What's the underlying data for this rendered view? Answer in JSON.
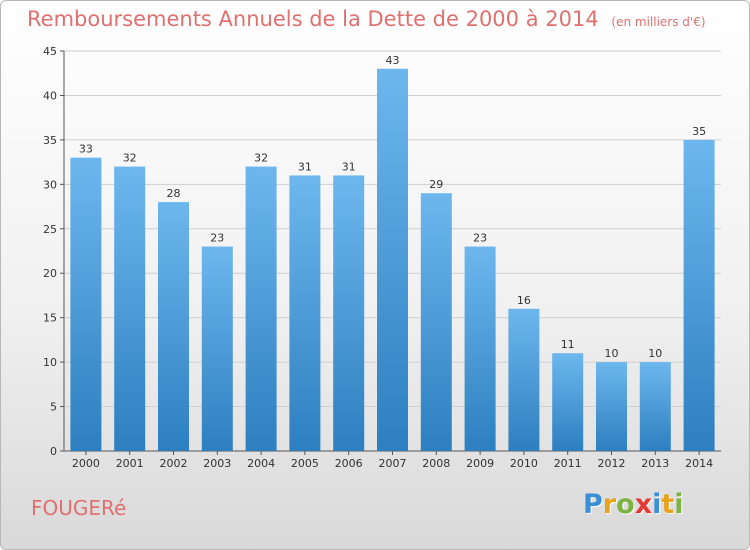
{
  "title": "Remboursements Annuels de la Dette de 2000 à 2014",
  "subtitle": "(en milliers d'€)",
  "commune": "FOUGERé",
  "logo": {
    "letters": [
      {
        "ch": "P",
        "color": "#3a8fd6"
      },
      {
        "ch": "r",
        "color": "#e8a21c"
      },
      {
        "ch": "o",
        "color": "#7cb342"
      },
      {
        "ch": "x",
        "color": "#e53935"
      },
      {
        "ch": "i",
        "color": "#3a8fd6"
      },
      {
        "ch": "t",
        "color": "#e8a21c"
      },
      {
        "ch": "i",
        "color": "#7cb342"
      }
    ]
  },
  "colors": {
    "bar_light": "#6db7ee",
    "bar_dark": "#2d7fc0",
    "title": "#e07070",
    "grid": "#cfcfcf"
  },
  "chart_data": {
    "type": "bar",
    "title": "Remboursements Annuels de la Dette de 2000 à 2014",
    "subtitle": "(en milliers d'€)",
    "categories": [
      "2000",
      "2001",
      "2002",
      "2003",
      "2004",
      "2005",
      "2006",
      "2007",
      "2008",
      "2009",
      "2010",
      "2011",
      "2012",
      "2013",
      "2014"
    ],
    "values": [
      33,
      32,
      28,
      23,
      32,
      31,
      31,
      43,
      29,
      23,
      16,
      11,
      10,
      10,
      35
    ],
    "ylim": [
      0,
      45
    ],
    "yticks": [
      0,
      5,
      10,
      15,
      20,
      25,
      30,
      35,
      40,
      45
    ],
    "grid": true,
    "data_labels": true
  }
}
